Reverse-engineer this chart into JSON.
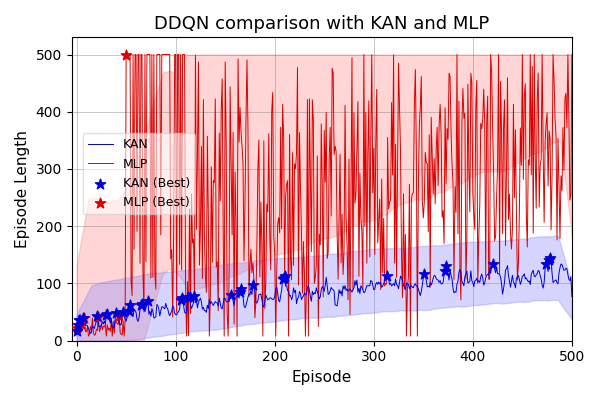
{
  "title": "DDQN comparison with KAN and MLP",
  "xlabel": "Episode",
  "ylabel": "Episode Length",
  "xlim": [
    -5,
    500
  ],
  "ylim": [
    0,
    530
  ],
  "kan_color": "#0000dd",
  "mlp_color": "#dd0000",
  "kan_fill_color": "#8888ff",
  "mlp_fill_color": "#ff8888",
  "legend_labels": [
    "KAN",
    "MLP",
    "KAN (Best)",
    "MLP (Best)"
  ],
  "seed": 42,
  "n_episodes": 501,
  "figsize": [
    6.0,
    4.0
  ],
  "dpi": 100
}
